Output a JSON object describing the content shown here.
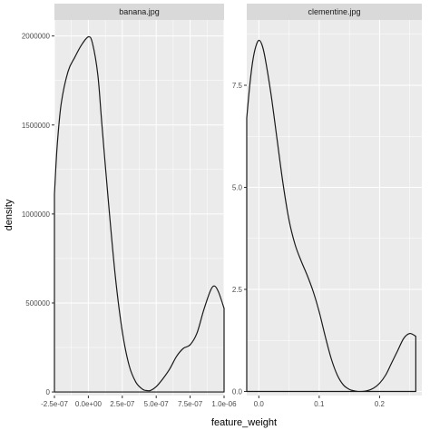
{
  "chart_data": {
    "type": "area",
    "xlabel": "feature_weight",
    "ylabel": "density",
    "colors": {
      "panel_bg": "#ebebeb",
      "strip_bg": "#d9d9d9",
      "grid": "#ffffff",
      "line": "#1a1a1a"
    },
    "facets": [
      {
        "label": "banana.jpg",
        "xlim": [
          -2.5e-07,
          1e-06
        ],
        "ylim": [
          -20000,
          2090000
        ],
        "x_ticks": [
          -2.5e-07,
          0,
          2.5e-07,
          5e-07,
          7.5e-07,
          1e-06
        ],
        "x_tick_labels": [
          "-2.5e-07",
          "0.0e+00",
          "2.5e-07",
          "5.0e-07",
          "7.5e-07",
          "1.0e-06"
        ],
        "y_ticks": [
          0,
          500000,
          1000000,
          1500000,
          2000000
        ],
        "y_tick_labels": [
          "0",
          "500000",
          "1000000",
          "1500000",
          "2000000"
        ],
        "x": [
          -2.5e-07,
          -2.3e-07,
          -2e-07,
          -1.5e-07,
          -1e-07,
          -5e-08,
          0,
          3e-08,
          7e-08,
          1e-07,
          1.5e-07,
          2e-07,
          2.5e-07,
          3e-07,
          3.5e-07,
          4e-07,
          4.3e-07,
          4.6e-07,
          5e-07,
          5.5e-07,
          6e-07,
          6.5e-07,
          7e-07,
          7.5e-07,
          8e-07,
          8.5e-07,
          9e-07,
          9.3e-07,
          9.6e-07,
          1e-06
        ],
        "y": [
          1110000,
          1380000,
          1620000,
          1800000,
          1880000,
          1950000,
          1995000,
          1960000,
          1780000,
          1500000,
          1050000,
          640000,
          340000,
          150000,
          55000,
          15000,
          8000,
          9000,
          30000,
          75000,
          130000,
          200000,
          245000,
          265000,
          330000,
          460000,
          570000,
          595000,
          560000,
          470000
        ]
      },
      {
        "label": "clementine.jpg",
        "xlim": [
          -0.02,
          0.27
        ],
        "ylim": [
          -0.1,
          9.1
        ],
        "x_ticks": [
          0,
          0.1,
          0.2
        ],
        "x_tick_labels": [
          "0.0",
          "0.1",
          "0.2"
        ],
        "y_ticks": [
          0,
          2.5,
          5,
          7.5
        ],
        "y_tick_labels": [
          "0.0",
          "2.5",
          "5.0",
          "7.5"
        ],
        "x": [
          -0.02,
          -0.015,
          -0.01,
          -0.005,
          0,
          0.005,
          0.01,
          0.02,
          0.03,
          0.04,
          0.05,
          0.06,
          0.07,
          0.08,
          0.09,
          0.1,
          0.11,
          0.12,
          0.13,
          0.14,
          0.15,
          0.16,
          0.17,
          0.18,
          0.19,
          0.2,
          0.21,
          0.22,
          0.23,
          0.24,
          0.25,
          0.26
        ],
        "y": [
          6.7,
          7.5,
          8.1,
          8.45,
          8.6,
          8.5,
          8.2,
          7.3,
          6.2,
          5.1,
          4.2,
          3.6,
          3.2,
          2.85,
          2.45,
          1.95,
          1.35,
          0.8,
          0.4,
          0.16,
          0.05,
          0.01,
          0.0,
          0.02,
          0.08,
          0.2,
          0.4,
          0.7,
          1.0,
          1.3,
          1.42,
          1.35
        ]
      }
    ]
  }
}
